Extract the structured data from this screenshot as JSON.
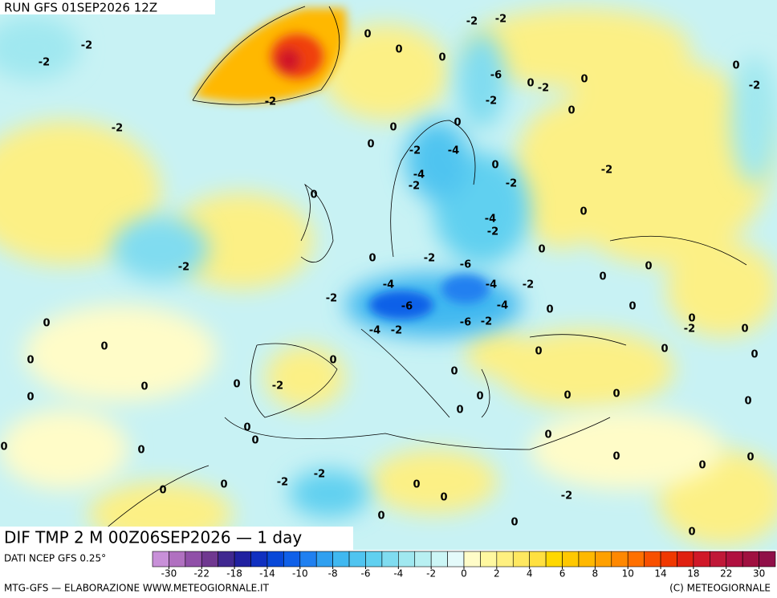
{
  "header": {
    "run": "RUN GFS 01SEP2026 12Z"
  },
  "map": {
    "title": "DIF TMP 2 M 00Z06SEP2026 — 1 day",
    "labels": [
      -2,
      -2,
      -2,
      -2,
      0,
      0,
      0,
      -2,
      -2,
      -6,
      0,
      -2,
      0,
      -2,
      0,
      0,
      -2,
      0,
      0,
      0,
      -2,
      -4,
      -4,
      -2,
      0,
      -2,
      -2,
      0,
      0,
      -4,
      -2,
      -2,
      0,
      -2,
      -6,
      0,
      0,
      -4,
      -4,
      -2,
      0,
      -2,
      -6,
      -4,
      0,
      0,
      0,
      -4,
      -2,
      -6,
      -2,
      0,
      -2,
      0,
      0,
      0,
      0,
      0,
      0,
      0,
      -2,
      0,
      0,
      0,
      0,
      0,
      0,
      0,
      0,
      0,
      0,
      0,
      0,
      0,
      0,
      0,
      0,
      -2,
      -2,
      0,
      0,
      0,
      0,
      0,
      -2,
      0,
      0,
      0
    ]
  },
  "colorbar": {
    "source": "DATI NCEP GFS 0.25°",
    "colors": [
      "#c890d8",
      "#b070c0",
      "#9050a8",
      "#703890",
      "#402890",
      "#2020a0",
      "#1030c0",
      "#0848d8",
      "#1060e8",
      "#2080f0",
      "#30a0f0",
      "#40b8f0",
      "#50c4f0",
      "#60d0f0",
      "#80dcf0",
      "#a0e8f0",
      "#b8f0f2",
      "#ccf6f6",
      "#e4fafa",
      "#fffcc8",
      "#fff8a0",
      "#fff080",
      "#ffe860",
      "#ffe040",
      "#ffd800",
      "#ffc800",
      "#ffb800",
      "#ffa000",
      "#ff8800",
      "#ff7000",
      "#f85000",
      "#f03800",
      "#e02010",
      "#d01828",
      "#c01838",
      "#b01040",
      "#a01040",
      "#901048"
    ],
    "ticks": [
      -30,
      -22,
      -18,
      -14,
      -10,
      -8,
      -6,
      -4,
      -2,
      0,
      2,
      4,
      6,
      8,
      10,
      14,
      18,
      22,
      30
    ]
  },
  "footer": {
    "left": "MTG-GFS — ELABORAZIONE WWW.METEOGIORNALE.IT",
    "right": "(C) METEOGIORNALE"
  }
}
